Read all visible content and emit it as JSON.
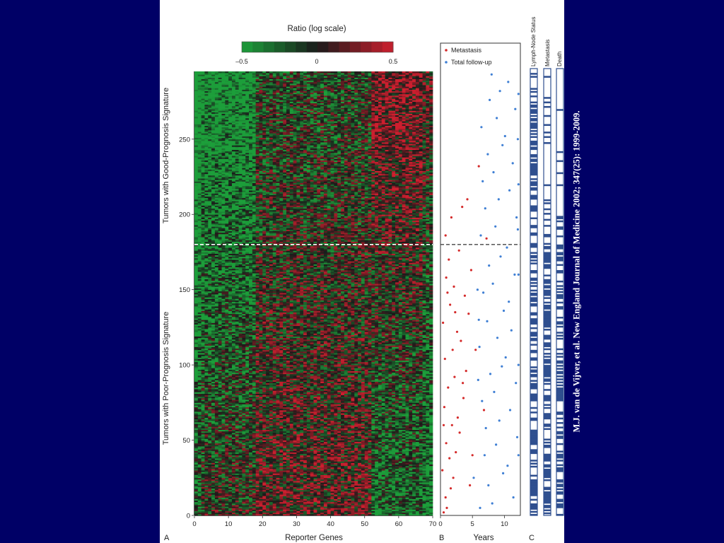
{
  "colors": {
    "background": "#000066",
    "panel": "#ffffff",
    "red": "#cc1f2e",
    "green": "#1c9e3a",
    "black": "#1a1a1a",
    "metastasis_dot": "#d42a2a",
    "followup_dot": "#3f7fd4",
    "status_bar": "#2f4f8f"
  },
  "citation": "M.J. van de Vijver, et al.  New England Journal of Medicine  2002; 347(25):  1999-2009.",
  "chart_data": [
    {
      "panel": "A",
      "type": "heatmap",
      "title": "Ratio (log scale)",
      "color_scale": {
        "min": -0.5,
        "mid": 0,
        "max": 0.5,
        "ticks": [
          "–0.5",
          "0",
          "0.5"
        ]
      },
      "xlabel": "Reporter Genes",
      "x_ticks": [
        0,
        10,
        20,
        30,
        40,
        50,
        60,
        70
      ],
      "xlim": [
        0,
        70
      ],
      "ylim": [
        0,
        295
      ],
      "y_ticks": [
        0,
        50,
        100,
        150,
        200,
        250
      ],
      "ylabel_good": "Tumors with Good-Prognosis Signature",
      "ylabel_poor": "Tumors with Poor-Prognosis Signature",
      "threshold_row": 180,
      "n_genes": 70,
      "n_tumors": 295
    },
    {
      "panel": "B",
      "type": "scatter",
      "xlabel": "Years",
      "x_ticks": [
        0,
        5,
        10
      ],
      "xlim": [
        0,
        12.5
      ],
      "ylim": [
        0,
        295
      ],
      "threshold_row": 180,
      "legend": [
        "Metastasis",
        "Total follow-up"
      ],
      "legend_position": "top-left",
      "metastasis_points": [
        [
          0.5,
          2
        ],
        [
          1.0,
          5
        ],
        [
          0.8,
          12
        ],
        [
          1.6,
          18
        ],
        [
          2.0,
          25
        ],
        [
          0.3,
          30
        ],
        [
          1.4,
          38
        ],
        [
          2.4,
          42
        ],
        [
          0.9,
          48
        ],
        [
          3.0,
          55
        ],
        [
          1.8,
          60
        ],
        [
          2.7,
          65
        ],
        [
          0.6,
          72
        ],
        [
          3.6,
          78
        ],
        [
          1.2,
          85
        ],
        [
          2.2,
          92
        ],
        [
          4.0,
          96
        ],
        [
          0.7,
          104
        ],
        [
          1.9,
          110
        ],
        [
          3.2,
          116
        ],
        [
          2.6,
          122
        ],
        [
          0.4,
          128
        ],
        [
          4.4,
          134
        ],
        [
          1.5,
          140
        ],
        [
          3.8,
          146
        ],
        [
          2.1,
          152
        ],
        [
          0.9,
          158
        ],
        [
          4.8,
          163
        ],
        [
          1.3,
          170
        ],
        [
          2.9,
          176
        ],
        [
          0.8,
          186
        ],
        [
          1.7,
          198
        ],
        [
          3.4,
          205
        ],
        [
          7.2,
          184
        ],
        [
          6.0,
          232
        ],
        [
          4.2,
          210
        ],
        [
          5.5,
          110
        ],
        [
          6.8,
          70
        ],
        [
          2.3,
          135
        ],
        [
          1.1,
          148
        ],
        [
          3.5,
          88
        ],
        [
          5.0,
          40
        ],
        [
          0.5,
          60
        ],
        [
          4.6,
          20
        ]
      ],
      "followup_points": [
        [
          6.2,
          5
        ],
        [
          8.1,
          8
        ],
        [
          11.4,
          12
        ],
        [
          7.5,
          20
        ],
        [
          9.8,
          28
        ],
        [
          10.5,
          33
        ],
        [
          6.9,
          40
        ],
        [
          8.7,
          47
        ],
        [
          12.0,
          52
        ],
        [
          7.1,
          58
        ],
        [
          9.2,
          63
        ],
        [
          10.9,
          70
        ],
        [
          6.5,
          76
        ],
        [
          8.4,
          82
        ],
        [
          11.8,
          88
        ],
        [
          7.8,
          94
        ],
        [
          9.6,
          99
        ],
        [
          10.2,
          105
        ],
        [
          6.1,
          112
        ],
        [
          8.9,
          118
        ],
        [
          11.1,
          123
        ],
        [
          7.3,
          129
        ],
        [
          9.9,
          136
        ],
        [
          10.7,
          142
        ],
        [
          6.7,
          148
        ],
        [
          8.2,
          154
        ],
        [
          11.6,
          160
        ],
        [
          7.6,
          166
        ],
        [
          9.4,
          172
        ],
        [
          10.4,
          178
        ],
        [
          6.3,
          186
        ],
        [
          8.6,
          192
        ],
        [
          11.9,
          198
        ],
        [
          7.0,
          204
        ],
        [
          9.1,
          210
        ],
        [
          10.8,
          216
        ],
        [
          6.6,
          222
        ],
        [
          8.3,
          228
        ],
        [
          11.3,
          234
        ],
        [
          7.4,
          240
        ],
        [
          9.7,
          246
        ],
        [
          10.1,
          252
        ],
        [
          6.4,
          258
        ],
        [
          8.8,
          264
        ],
        [
          11.7,
          270
        ],
        [
          7.7,
          276
        ],
        [
          9.3,
          282
        ],
        [
          10.6,
          288
        ],
        [
          8.0,
          293
        ],
        [
          5.8,
          150
        ],
        [
          12.2,
          40
        ],
        [
          12.2,
          100
        ],
        [
          12.2,
          160
        ],
        [
          12.2,
          220
        ],
        [
          12.2,
          280
        ],
        [
          5.2,
          25
        ],
        [
          5.9,
          90
        ],
        [
          6.0,
          130
        ],
        [
          12.1,
          190
        ],
        [
          12.1,
          250
        ]
      ]
    },
    {
      "panel": "C",
      "type": "heatmap",
      "columns": [
        "Lymph-Node Status",
        "Metastasis",
        "Death"
      ],
      "ylim": [
        0,
        295
      ]
    }
  ]
}
